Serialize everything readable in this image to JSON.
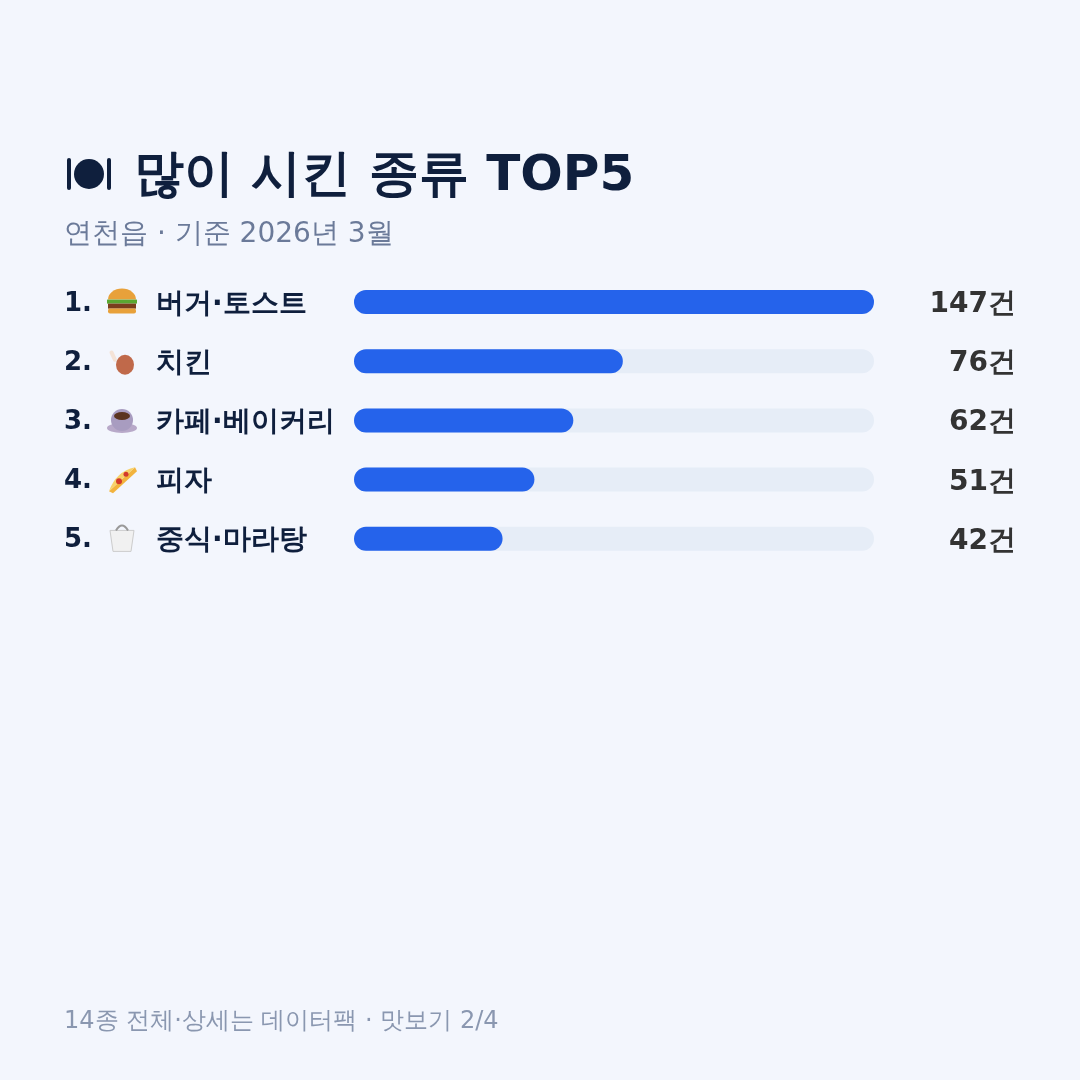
{
  "chart_data": {
    "type": "bar",
    "orientation": "horizontal",
    "title": "많이 시킨 종류 TOP5",
    "subtitle": "연천읍 · 기준 2026년 3월",
    "categories": [
      "1. 버거·토스트",
      "2. 치킨",
      "3. 카페·베이커리",
      "4. 피자",
      "5. 중식·마라탕"
    ],
    "values": [
      147,
      76,
      62,
      51,
      42
    ],
    "value_labels": [
      "147건",
      "76건",
      "62건",
      "51건",
      "42건"
    ],
    "color": "#2563eb",
    "xlim": [
      0,
      147
    ],
    "annotations": [
      "14종 전체·상세는 데이터팩 · 맛보기 2/4"
    ]
  }
}
